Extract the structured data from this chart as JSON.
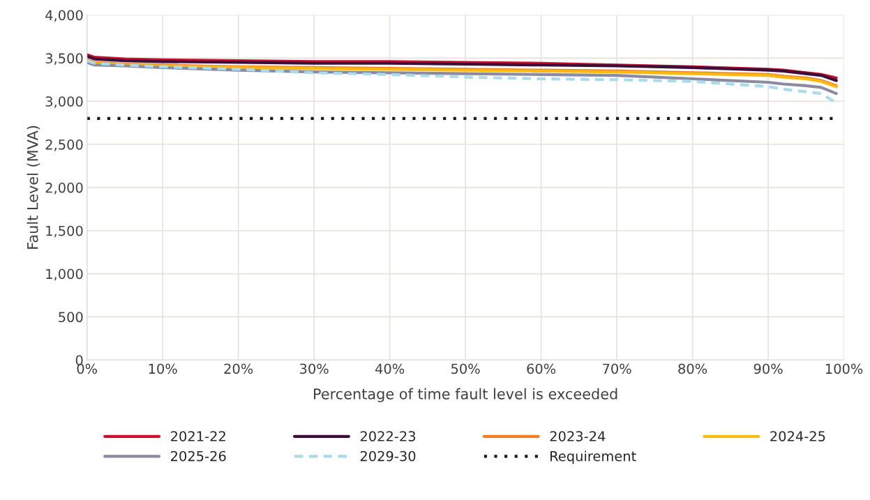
{
  "chart_data": {
    "type": "line",
    "xlabel": "Percentage of time fault level is exceeded",
    "ylabel": "Fault Level (MVA)",
    "x": [
      0,
      1,
      5,
      10,
      20,
      30,
      40,
      50,
      60,
      70,
      80,
      90,
      92,
      95,
      97,
      99
    ],
    "series": [
      {
        "name": "2021-22",
        "color": "#c8102e",
        "values": [
          3540,
          3510,
          3490,
          3480,
          3470,
          3460,
          3460,
          3450,
          3440,
          3420,
          3400,
          3370,
          3360,
          3330,
          3310,
          3270
        ]
      },
      {
        "name": "2022-23",
        "color": "#3b0f3a",
        "values": [
          3520,
          3490,
          3470,
          3460,
          3450,
          3440,
          3440,
          3430,
          3420,
          3410,
          3390,
          3360,
          3350,
          3320,
          3300,
          3240
        ]
      },
      {
        "name": "2023-24",
        "color": "#f47b20",
        "values": [
          3480,
          3450,
          3430,
          3420,
          3400,
          3390,
          3380,
          3370,
          3360,
          3350,
          3330,
          3310,
          3290,
          3270,
          3240,
          3180
        ]
      },
      {
        "name": "2024-25",
        "color": "#fdb913",
        "values": [
          3470,
          3440,
          3420,
          3410,
          3390,
          3380,
          3370,
          3360,
          3350,
          3340,
          3320,
          3300,
          3280,
          3260,
          3230,
          3170
        ]
      },
      {
        "name": "2025-26",
        "color": "#8a8aa0",
        "values": [
          3450,
          3420,
          3410,
          3390,
          3360,
          3340,
          3330,
          3320,
          3310,
          3300,
          3260,
          3220,
          3200,
          3180,
          3160,
          3090
        ]
      },
      {
        "name": "2029-30",
        "color": "#a8dcea",
        "line_style": "dashed",
        "values": [
          3470,
          3440,
          3420,
          3400,
          3370,
          3330,
          3310,
          3280,
          3260,
          3250,
          3230,
          3170,
          3140,
          3110,
          3090,
          2980
        ]
      },
      {
        "name": "Requirement",
        "color": "#1a1a1a",
        "line_style": "dotted",
        "x": [
          0,
          99
        ],
        "values": [
          2800,
          2800
        ]
      }
    ],
    "xlim": [
      0,
      100
    ],
    "ylim": [
      0,
      4000
    ],
    "xticks": [
      {
        "value": 0,
        "label": "0%"
      },
      {
        "value": 10,
        "label": "10%"
      },
      {
        "value": 20,
        "label": "20%"
      },
      {
        "value": 30,
        "label": "30%"
      },
      {
        "value": 40,
        "label": "40%"
      },
      {
        "value": 50,
        "label": "50%"
      },
      {
        "value": 60,
        "label": "60%"
      },
      {
        "value": 70,
        "label": "70%"
      },
      {
        "value": 80,
        "label": "80%"
      },
      {
        "value": 90,
        "label": "90%"
      },
      {
        "value": 100,
        "label": "100%"
      }
    ],
    "yticks": [
      0,
      {
        "value": 500,
        "label": "500"
      },
      {
        "value": 1000,
        "label": "1,000"
      },
      {
        "value": 1500,
        "label": "1,500"
      },
      {
        "value": 2000,
        "label": "2,000"
      },
      {
        "value": 2500,
        "label": "2,500"
      },
      {
        "value": 3000,
        "label": "3,000"
      },
      {
        "value": 3500,
        "label": "3,500"
      },
      {
        "value": 4000,
        "label": "4,000"
      }
    ],
    "grid": true,
    "legend": "bottom",
    "marker": "none",
    "line_style": "solid"
  }
}
